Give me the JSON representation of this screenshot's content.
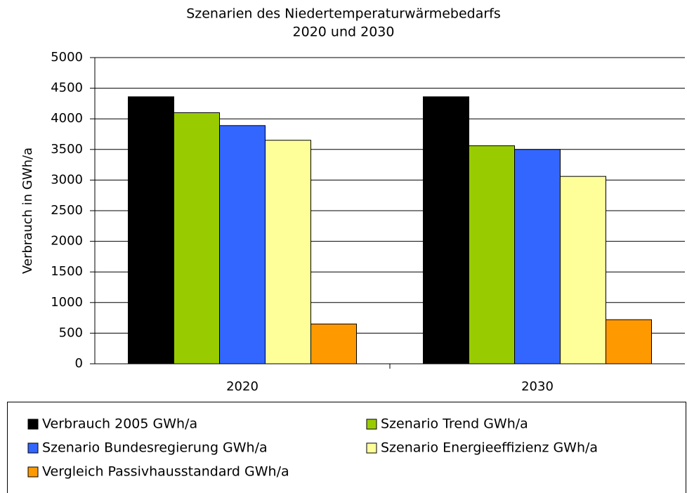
{
  "chart_data": {
    "type": "bar",
    "title": "Szenarien des Niedertemperaturwärmebedarfs",
    "subtitle": "2020 und 2030",
    "y_label": "Verbrauch in GWh/a",
    "categories": [
      "2020",
      "2030"
    ],
    "series": [
      {
        "name": "Verbrauch 2005 GWh/a",
        "color": "#000000",
        "values": [
          4360,
          4360
        ]
      },
      {
        "name": "Szenario Trend GWh/a",
        "color": "#99cc00",
        "values": [
          4100,
          3560
        ]
      },
      {
        "name": "Szenario Bundesregierung GWh/a",
        "color": "#3366ff",
        "values": [
          3890,
          3500
        ]
      },
      {
        "name": "Szenario Energieeffizienz GWh/a",
        "color": "#ffff99",
        "values": [
          3650,
          3060
        ]
      },
      {
        "name": "Vergleich Passivhausstandard GWh/a",
        "color": "#ff9900",
        "values": [
          650,
          720
        ]
      }
    ],
    "ylim": [
      0,
      5000
    ],
    "yticks": [
      0,
      500,
      1000,
      1500,
      2000,
      2500,
      3000,
      3500,
      4000,
      4500,
      5000
    ],
    "grid": true,
    "legend": "bottom"
  }
}
